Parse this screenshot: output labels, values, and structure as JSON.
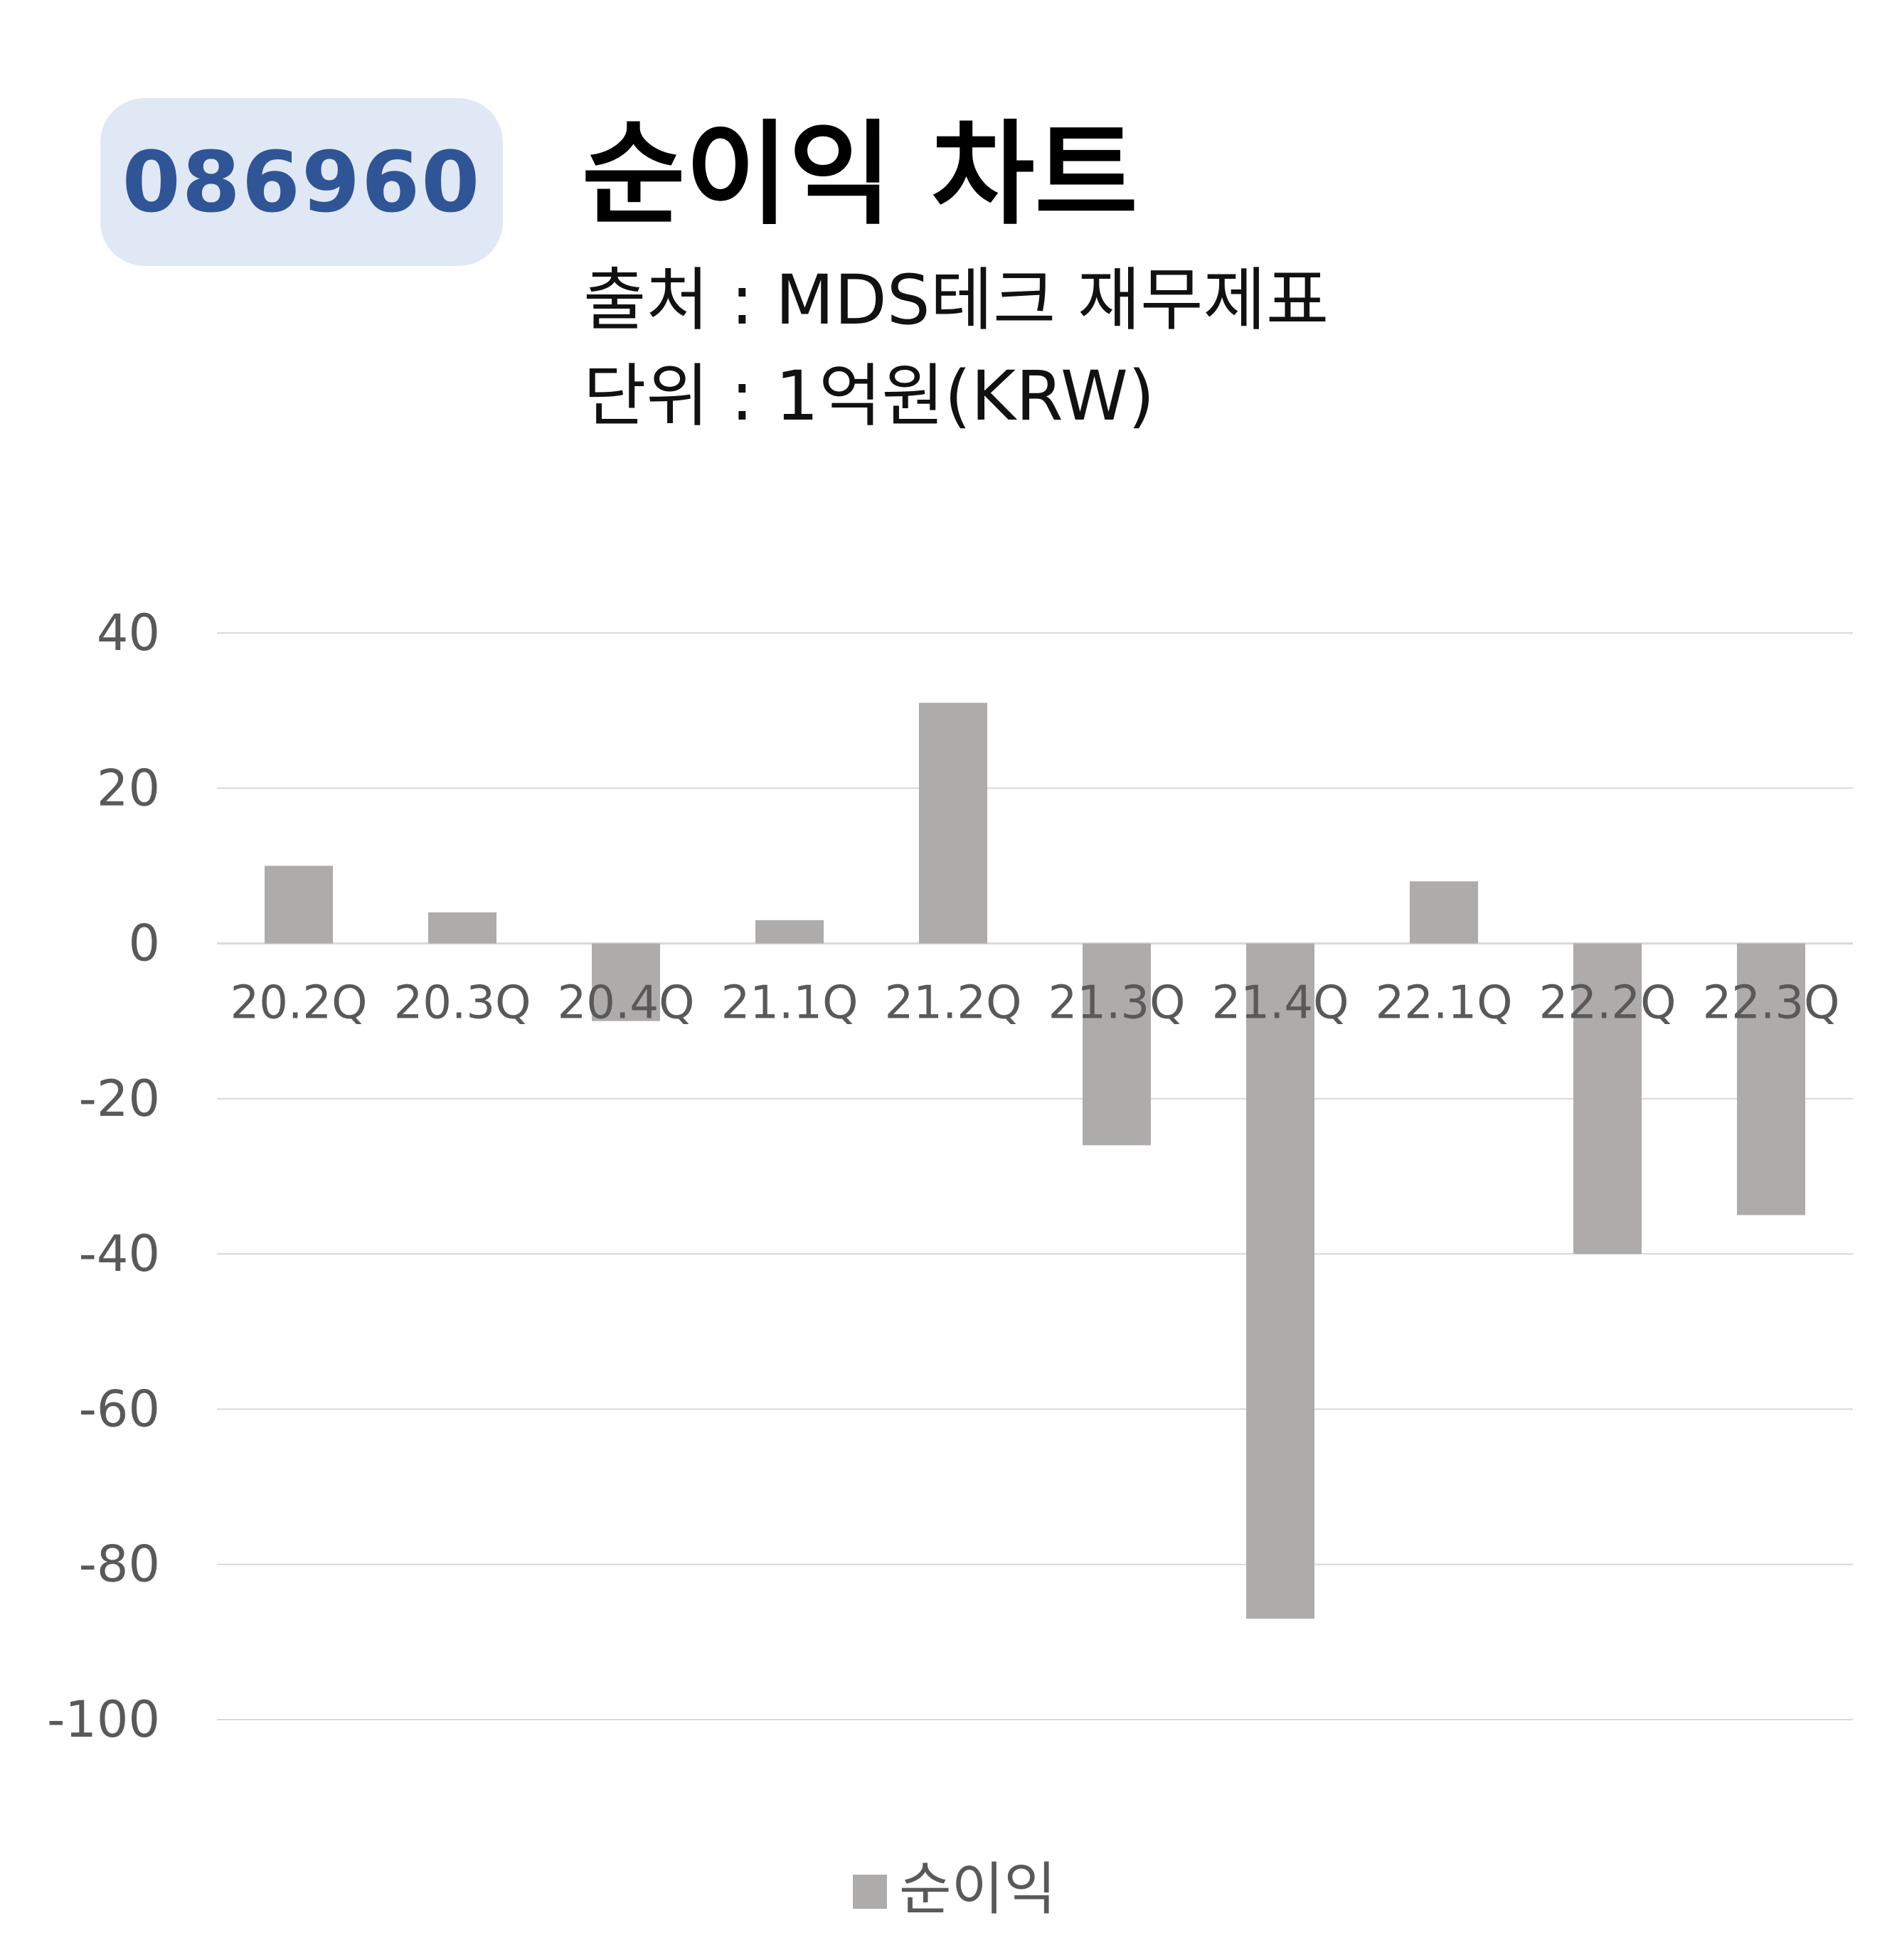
{
  "header": {
    "code": "086960",
    "title": "순이익 차트",
    "source": "출처 : MDS테크 재무제표",
    "unit": "단위 : 1억원(KRW)"
  },
  "colors": {
    "bar": "#aeabab",
    "badge_bg": "#e1e8f5",
    "badge_text": "#2f5597",
    "grid": "#d9d9d9",
    "tick_text": "#595959"
  },
  "chart_data": {
    "type": "bar",
    "categories": [
      "20.2Q",
      "20.3Q",
      "20.4Q",
      "21.1Q",
      "21.2Q",
      "21.3Q",
      "21.4Q",
      "22.1Q",
      "22.2Q",
      "22.3Q"
    ],
    "series": [
      {
        "name": "순이익",
        "values": [
          10,
          4,
          -10,
          3,
          31,
          -26,
          -87,
          8,
          -40,
          -35
        ]
      }
    ],
    "ylim": [
      -100,
      40
    ],
    "yticks": [
      40,
      20,
      0,
      -20,
      -40,
      -60,
      -80,
      -100
    ],
    "grid": true,
    "legend": "bottom-center"
  }
}
